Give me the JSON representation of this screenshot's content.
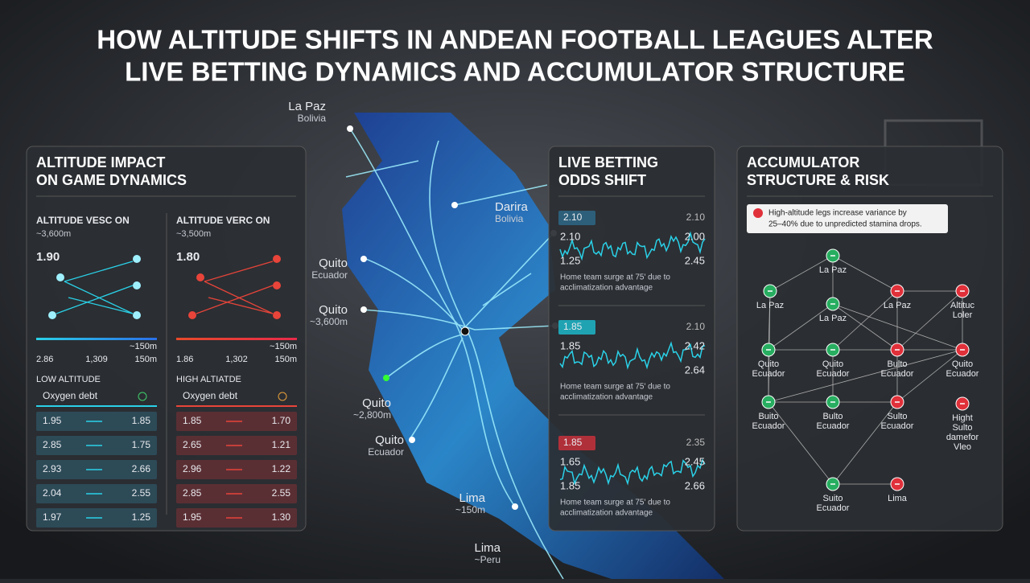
{
  "header": {
    "title": [
      "HOW ALTITUDE SHIFTS IN ANDEAN FOOTBALL LEAGUES ALTER",
      "LIVE BETTING DYNAMICS AND ACCUMULATOR STRUCTURE"
    ]
  },
  "map": {
    "labels": [
      {
        "name": "La Paz",
        "sub": "Bolivia"
      },
      {
        "name": "Darira",
        "sub": "Bolivia"
      },
      {
        "name": "Quito",
        "sub": "Ecuador"
      },
      {
        "name": "Quito",
        "sub": "~3,600m"
      },
      {
        "name": "Quito",
        "sub": "~2,800m"
      },
      {
        "name": "Quito",
        "sub": "Ecuador"
      },
      {
        "name": "Lima",
        "sub": "~150m"
      },
      {
        "name": "Lima",
        "sub": "~Peru"
      }
    ]
  },
  "altitude_panel": {
    "title": [
      "ALTITUDE IMPACT",
      "ON GAME DYNAMICS"
    ],
    "columns": [
      {
        "heading": "ALTITUDE VESC ON",
        "altitude": "~3,600m",
        "value": "1.90",
        "scale_end": "~150m",
        "scale_labels": [
          "2.86",
          "1,309",
          "150m"
        ],
        "section": "LOW ALTITUDE",
        "metric": "Oxygen debt",
        "rows": [
          [
            "1.95",
            "1.85"
          ],
          [
            "2.85",
            "1.75"
          ],
          [
            "2.93",
            "2.66"
          ],
          [
            "2.04",
            "2.55"
          ],
          [
            "1.97",
            "1.25"
          ]
        ]
      },
      {
        "heading": "ALTITUDE VERC ON",
        "altitude": "~3,500m",
        "value": "1.80",
        "scale_end": "~150m",
        "scale_labels": [
          "1.86",
          "1,302",
          "150m"
        ],
        "section": "HIGH ALTIATDE",
        "metric": "Oxygen debt",
        "rows": [
          [
            "1.85",
            "1.70"
          ],
          [
            "2.65",
            "1.21"
          ],
          [
            "2.96",
            "1.22"
          ],
          [
            "2.85",
            "2.55"
          ],
          [
            "1.95",
            "1.30"
          ]
        ]
      }
    ]
  },
  "odds_panel": {
    "title": [
      "LIVE BETTING",
      "ODDS SHIFT"
    ],
    "blocks": [
      {
        "badge": "2.10",
        "corner": "2.10",
        "left": [
          "2.10",
          "1.25"
        ],
        "right": [
          "2.00",
          "2.45"
        ],
        "note": [
          "Home team surge at 75' due to",
          "acclimatization advantage"
        ]
      },
      {
        "badge": "1.85",
        "corner": "2.10",
        "left": [
          "1.85"
        ],
        "right": [
          "2.42",
          "2.64"
        ],
        "note": [
          "Home team surge at 75' due to",
          "acclimatization advantage"
        ]
      },
      {
        "badge": "1.85",
        "corner": "2.35",
        "left": [
          "1.65",
          "1.85"
        ],
        "right": [
          "2.45",
          "2.66"
        ],
        "note": [
          "Home team surge at 75' due to",
          "acclimatization advantage"
        ]
      }
    ]
  },
  "accumulator_panel": {
    "title": [
      "ACCUMULATOR",
      "STRUCTURE & RISK"
    ],
    "alert": [
      "High-altitude legs increase variance by",
      "25–40% due to unpredicted stamina drops."
    ],
    "nodes": [
      {
        "label": [
          "La Paz"
        ],
        "color": "#27ae60"
      },
      {
        "label": [
          "La Paz"
        ],
        "color": "#27ae60"
      },
      {
        "label": [
          "La Paz"
        ],
        "color": "#27ae60"
      },
      {
        "label": [
          "La Paz"
        ],
        "color": "#e0303a"
      },
      {
        "label": [
          "Altituc",
          "Loler"
        ],
        "color": "#e0303a"
      },
      {
        "label": [
          "Quito",
          "Ecuador"
        ],
        "color": "#27ae60"
      },
      {
        "label": [
          "Quito",
          "Ecuador"
        ],
        "color": "#27ae60"
      },
      {
        "label": [
          "Bulto",
          "Ecuador"
        ],
        "color": "#e0303a"
      },
      {
        "label": [
          "Quito",
          "Ecuador"
        ],
        "color": "#e0303a"
      },
      {
        "label": [
          "Buito",
          "Ecuador"
        ],
        "color": "#27ae60"
      },
      {
        "label": [
          "Bulto",
          "Ecuador"
        ],
        "color": "#27ae60"
      },
      {
        "label": [
          "Sulto",
          "Ecuador"
        ],
        "color": "#e0303a"
      },
      {
        "label": [
          "Hight",
          "Sulto",
          "damefor",
          "Vleo"
        ],
        "color": "#e0303a"
      },
      {
        "label": [
          "Suito",
          "Ecuador"
        ],
        "color": "#27ae60"
      },
      {
        "label": [
          "Lima"
        ],
        "color": "#e0303a"
      }
    ]
  }
}
